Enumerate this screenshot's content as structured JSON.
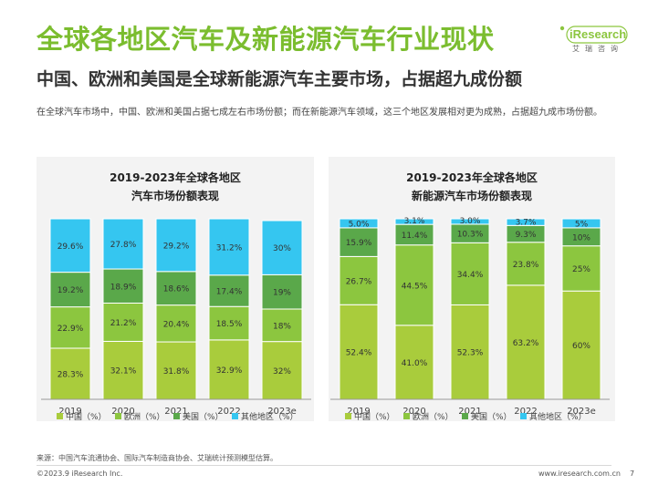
{
  "header": {
    "title": "全球各地区汽车及新能源汽车行业现状",
    "subtitle": "中国、欧洲和美国是全球新能源汽车主要市场，占据超九成份额",
    "description": "在全球汽车市场中，中国、欧洲和美国占据七成左右市场份额；而在新能源汽车领域，这三个地区发展相对更为成熟，占据超九成市场份额。",
    "logo": "iResearch",
    "logo_cn": "艾瑞咨询"
  },
  "colors": {
    "title_green": "#7bbd2f",
    "china": "#a9cc3c",
    "europe": "#8cc63f",
    "usa": "#5aa84a",
    "other": "#35c6f0"
  },
  "chart_data": [
    {
      "type": "bar",
      "stacked": true,
      "title_line1": "2019-2023年全球各地区",
      "title_line2": "汽车市场份额表现",
      "categories": [
        "2019",
        "2020",
        "2021",
        "2022",
        "2023e"
      ],
      "series": [
        {
          "name": "中国（%）",
          "values": [
            28.3,
            32.1,
            31.8,
            32.9,
            32
          ],
          "labels": [
            "28.3%",
            "32.1%",
            "31.8%",
            "32.9%",
            "32%"
          ]
        },
        {
          "name": "欧洲（%）",
          "values": [
            22.9,
            21.2,
            20.4,
            18.5,
            18
          ],
          "labels": [
            "22.9%",
            "21.2%",
            "20.4%",
            "18.5%",
            "18%"
          ]
        },
        {
          "name": "美国（%）",
          "values": [
            19.2,
            18.9,
            18.6,
            17.4,
            19
          ],
          "labels": [
            "19.2%",
            "18.9%",
            "18.6%",
            "17.4%",
            "19%"
          ]
        },
        {
          "name": "其他地区（%）",
          "values": [
            29.6,
            27.8,
            29.2,
            31.2,
            30
          ],
          "labels": [
            "29.6%",
            "27.8%",
            "29.2%",
            "31.2%",
            "30%"
          ]
        }
      ],
      "ylim": [
        0,
        100
      ]
    },
    {
      "type": "bar",
      "stacked": true,
      "title_line1": "2019-2023年全球各地区",
      "title_line2": "新能源汽车市场份额表现",
      "categories": [
        "2019",
        "2020",
        "2021",
        "2022",
        "2023e"
      ],
      "series": [
        {
          "name": "中国（%）",
          "values": [
            52.4,
            41.0,
            52.3,
            63.2,
            60
          ],
          "labels": [
            "52.4%",
            "41.0%",
            "52.3%",
            "63.2%",
            "60%"
          ]
        },
        {
          "name": "欧洲（%）",
          "values": [
            26.7,
            44.5,
            34.4,
            23.8,
            25
          ],
          "labels": [
            "26.7%",
            "44.5%",
            "34.4%",
            "23.8%",
            "25%"
          ]
        },
        {
          "name": "美国（%）",
          "values": [
            15.9,
            11.4,
            10.3,
            9.3,
            10
          ],
          "labels": [
            "15.9%",
            "11.4%",
            "10.3%",
            "9.3%",
            "10%"
          ]
        },
        {
          "name": "其他地区（%）",
          "values": [
            5.0,
            3.1,
            3.0,
            3.7,
            5
          ],
          "labels": [
            "5.0%",
            "3.1%",
            "3.0%",
            "3.7%",
            "5%"
          ]
        }
      ],
      "ylim": [
        0,
        100
      ]
    }
  ],
  "footer": {
    "source": "来源：中国汽车流通协会、国际汽车制造商协会、艾瑞统计预测模型估算。",
    "copyright": "©2023.9 iResearch Inc.",
    "website": "www.iresearch.com.cn",
    "page": "7"
  }
}
